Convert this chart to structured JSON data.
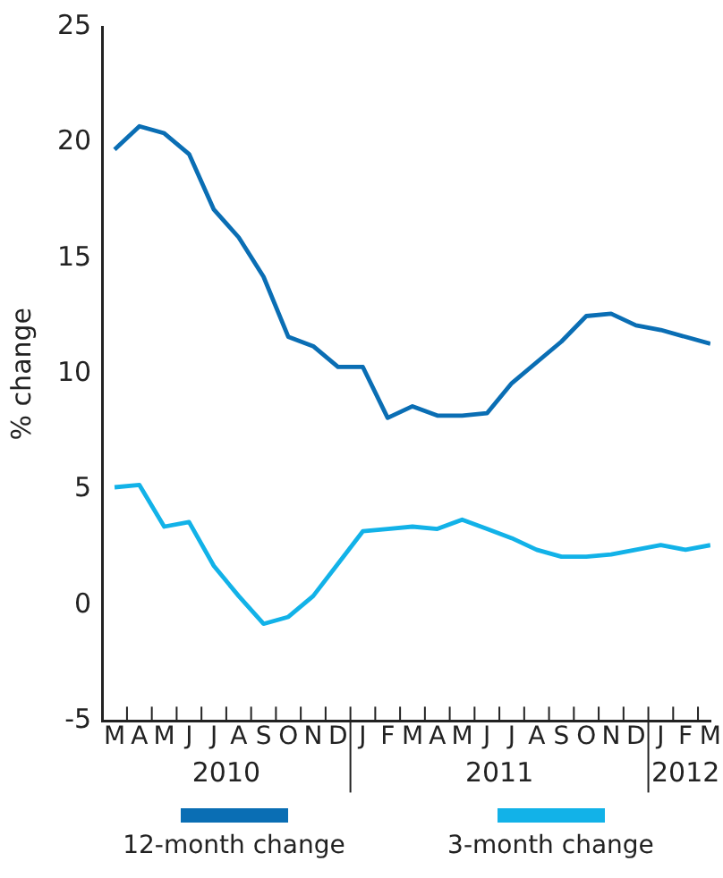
{
  "chart_data": {
    "type": "line",
    "ylabel": "% change",
    "series": [
      {
        "name": "12-month change",
        "color": "#0a6eb4",
        "values": [
          19.7,
          20.7,
          20.4,
          19.5,
          17.1,
          15.9,
          14.2,
          11.6,
          11.2,
          10.3,
          10.3,
          8.1,
          8.6,
          8.2,
          8.2,
          8.3,
          9.6,
          10.5,
          11.4,
          12.5,
          12.6,
          12.1,
          11.9,
          11.6,
          11.3
        ]
      },
      {
        "name": "3-month change",
        "color": "#12b2e8",
        "values": [
          5.1,
          5.2,
          3.4,
          3.6,
          1.7,
          0.4,
          -0.8,
          -0.5,
          0.4,
          1.8,
          3.2,
          3.3,
          3.4,
          3.3,
          3.7,
          3.3,
          2.9,
          2.4,
          2.1,
          2.1,
          2.2,
          2.4,
          2.6,
          2.4,
          2.6
        ]
      }
    ],
    "categories": [
      "M",
      "A",
      "M",
      "J",
      "J",
      "A",
      "S",
      "O",
      "N",
      "D",
      "J",
      "F",
      "M",
      "A",
      "M",
      "J",
      "J",
      "A",
      "S",
      "O",
      "N",
      "D",
      "J",
      "F",
      "M"
    ],
    "ylim": [
      -5,
      25
    ],
    "yticks": [
      -5,
      0,
      5,
      10,
      15,
      20,
      25
    ],
    "annotations": [
      "2010",
      "2011",
      "2012"
    ],
    "grid": false,
    "legend": "bottom",
    "marker": "none",
    "line_style": "solid"
  }
}
